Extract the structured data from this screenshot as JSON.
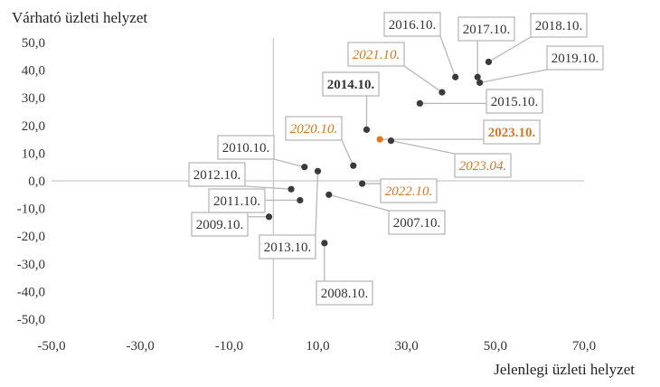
{
  "chart_data": {
    "type": "scatter",
    "ylabel": "Várható üzleti helyzet",
    "xlabel": "Jelenlegi üzleti helyzet",
    "xlim": [
      -50,
      70
    ],
    "ylim": [
      -50,
      50
    ],
    "x_ticks": [
      "-50,0",
      "-30,0",
      "-10,0",
      "10,0",
      "30,0",
      "50,0",
      "70,0"
    ],
    "y_ticks": [
      "50,0",
      "40,0",
      "30,0",
      "20,0",
      "10,0",
      "0,0",
      "-10,0",
      "-20,0",
      "-30,0",
      "-40,0",
      "-50,0"
    ],
    "grid": false,
    "points": [
      {
        "label": "2007.10.",
        "x": 12.5,
        "y": -5,
        "style": "normal"
      },
      {
        "label": "2008.10.",
        "x": 11.5,
        "y": -22.5,
        "style": "normal"
      },
      {
        "label": "2009.10.",
        "x": -1,
        "y": -13,
        "style": "normal"
      },
      {
        "label": "2010.10.",
        "x": 7,
        "y": 5,
        "style": "normal"
      },
      {
        "label": "2011.10.",
        "x": 6,
        "y": -7,
        "style": "normal"
      },
      {
        "label": "2012.10.",
        "x": 4,
        "y": -3,
        "style": "normal"
      },
      {
        "label": "2013.10.",
        "x": 10,
        "y": 3.5,
        "style": "normal"
      },
      {
        "label": "2014.10.",
        "x": 21,
        "y": 18.5,
        "style": "bold"
      },
      {
        "label": "2015.10.",
        "x": 33,
        "y": 28,
        "style": "normal"
      },
      {
        "label": "2016.10.",
        "x": 41,
        "y": 37.5,
        "style": "normal"
      },
      {
        "label": "2017.10.",
        "x": 46,
        "y": 37.5,
        "style": "normal"
      },
      {
        "label": "2018.10.",
        "x": 48.5,
        "y": 43,
        "style": "normal"
      },
      {
        "label": "2019.10.",
        "x": 46.5,
        "y": 35.5,
        "style": "normal"
      },
      {
        "label": "2020.10.",
        "x": 18,
        "y": 5.5,
        "style": "orange-italic"
      },
      {
        "label": "2021.10.",
        "x": 38,
        "y": 32,
        "style": "orange-italic"
      },
      {
        "label": "2022.10.",
        "x": 20,
        "y": -1,
        "style": "orange-italic"
      },
      {
        "label": "2023.04.",
        "x": 26.5,
        "y": 14.5,
        "style": "orange-italic"
      },
      {
        "label": "2023.10.",
        "x": 24,
        "y": 15,
        "style": "orange-bold-highlight"
      }
    ]
  },
  "colors": {
    "point": "#3a3a3a",
    "highlight_point": "#e07b1f",
    "orange_text": "#d4791c",
    "text": "#333333",
    "axis": "#c8c8c8",
    "box_border": "#b8b8b8"
  }
}
